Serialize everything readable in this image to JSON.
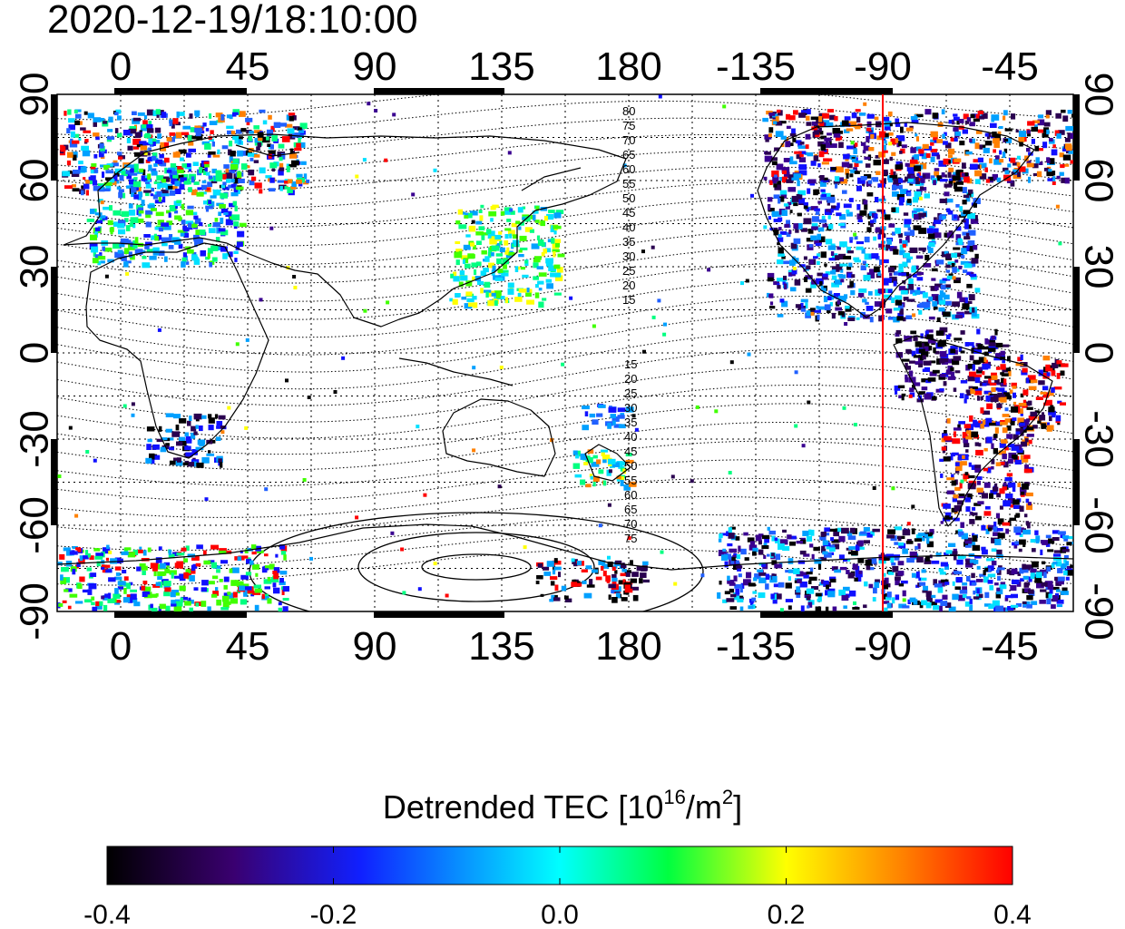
{
  "title": "2020-12-19/18:10:00",
  "map": {
    "lon_ticks": [
      "0",
      "45",
      "90",
      "135",
      "180",
      "-135",
      "-90",
      "-45"
    ],
    "lat_ticks": [
      "90",
      "60",
      "30",
      "0",
      "-30",
      "-60",
      "-90"
    ],
    "contour_labels_north": [
      "80",
      "75",
      "70",
      "65",
      "60",
      "55",
      "50",
      "45",
      "40",
      "35",
      "30",
      "25",
      "20",
      "15"
    ],
    "contour_labels_south": [
      "15",
      "20",
      "25",
      "30",
      "35",
      "40",
      "45",
      "50",
      "55",
      "60",
      "65",
      "70",
      "75"
    ],
    "meridian_line_lon": -90,
    "meridian_line_color": "#ff0000"
  },
  "colorbar": {
    "title_prefix": "Detrended TEC  [10",
    "title_exp": "16",
    "title_mid": "/m",
    "title_exp2": "2",
    "title_suffix": "]",
    "min": -0.4,
    "max": 0.4,
    "tick_labels": [
      "-0.4",
      "-0.2",
      "0.0",
      "0.2",
      "0.4"
    ]
  }
}
